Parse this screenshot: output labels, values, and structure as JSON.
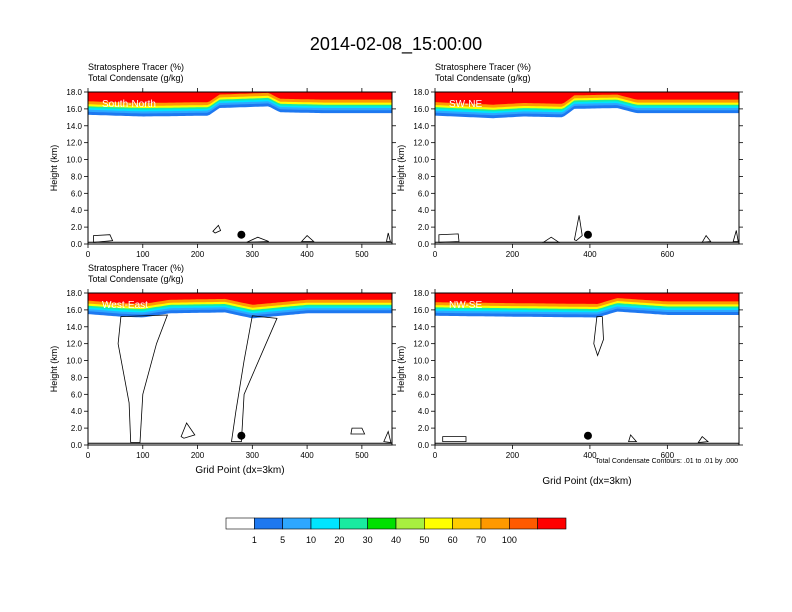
{
  "title": "2014-02-08_15:00:00",
  "footnote": "Total Condensate Contours: .01 to .01 by .000",
  "colors": {
    "levels": [
      "#ffffff",
      "#1e78f0",
      "#2ea7ff",
      "#00e5ff",
      "#19eba0",
      "#00e000",
      "#a8f040",
      "#ffff00",
      "#ffcc00",
      "#ff9900",
      "#ff5a00",
      "#ff0000"
    ],
    "contour": "#000000",
    "marker": "#000000"
  },
  "chart_data": [
    {
      "type": "heatmap",
      "panel": "top-left",
      "label": "South-North",
      "lefttitle1": "Stratosphere Tracer   (%)",
      "lefttitle2": "Total Condensate   (g/kg)",
      "ylabel": "Height (km)",
      "xlabel": "",
      "xlim": [
        0,
        555
      ],
      "ylim": [
        0,
        18
      ],
      "xticks": [
        0,
        100,
        200,
        300,
        400,
        500
      ],
      "yticks": [
        "0.0",
        "2.0",
        "4.0",
        "6.0",
        "8.0",
        "10.0",
        "12.0",
        "14.0",
        "16.0",
        "18.0"
      ],
      "marker": {
        "x": 280,
        "y": 1.1
      },
      "tracer_base_km": [
        [
          0,
          15.3
        ],
        [
          100,
          15.1
        ],
        [
          220,
          15.2
        ],
        [
          240,
          16.1
        ],
        [
          330,
          16.3
        ],
        [
          350,
          15.6
        ],
        [
          430,
          15.5
        ],
        [
          555,
          15.5
        ]
      ],
      "condensate_contours": [
        [
          [
            10,
            0.2
          ],
          [
            10,
            1.0
          ],
          [
            40,
            1.1
          ],
          [
            45,
            0.4
          ],
          [
            12,
            0.2
          ]
        ],
        [
          [
            228,
            1.5
          ],
          [
            238,
            2.2
          ],
          [
            242,
            1.6
          ],
          [
            232,
            1.3
          ]
        ],
        [
          [
            290,
            0.2
          ],
          [
            310,
            0.8
          ],
          [
            330,
            0.3
          ]
        ],
        [
          [
            390,
            0.3
          ],
          [
            400,
            1.0
          ],
          [
            412,
            0.3
          ]
        ],
        [
          [
            545,
            0.3
          ],
          [
            548,
            1.3
          ],
          [
            552,
            0.3
          ]
        ]
      ]
    },
    {
      "type": "heatmap",
      "panel": "top-right",
      "label": "SW-NE",
      "lefttitle1": "Stratosphere Tracer   (%)",
      "lefttitle2": "Total Condensate   (g/kg)",
      "ylabel": "Height (km)",
      "xlabel": "",
      "xlim": [
        0,
        785
      ],
      "ylim": [
        0,
        18
      ],
      "xticks": [
        0,
        200,
        400,
        600
      ],
      "yticks": [
        "0.0",
        "2.0",
        "4.0",
        "6.0",
        "8.0",
        "10.0",
        "12.0",
        "14.0",
        "16.0",
        "18.0"
      ],
      "marker": {
        "x": 395,
        "y": 1.1
      },
      "tracer_base_km": [
        [
          0,
          15.2
        ],
        [
          150,
          14.9
        ],
        [
          230,
          15.1
        ],
        [
          330,
          15.0
        ],
        [
          360,
          16.0
        ],
        [
          470,
          16.1
        ],
        [
          520,
          15.5
        ],
        [
          785,
          15.5
        ]
      ],
      "condensate_contours": [
        [
          [
            10,
            0.2
          ],
          [
            10,
            1.1
          ],
          [
            60,
            1.2
          ],
          [
            62,
            0.3
          ],
          [
            12,
            0.2
          ]
        ],
        [
          [
            360,
            0.5
          ],
          [
            372,
            3.4
          ],
          [
            380,
            1.0
          ],
          [
            365,
            0.4
          ]
        ],
        [
          [
            280,
            0.2
          ],
          [
            300,
            0.8
          ],
          [
            320,
            0.2
          ]
        ],
        [
          [
            690,
            0.2
          ],
          [
            700,
            1.0
          ],
          [
            712,
            0.3
          ]
        ],
        [
          [
            770,
            0.3
          ],
          [
            778,
            1.6
          ],
          [
            783,
            0.3
          ]
        ]
      ]
    },
    {
      "type": "heatmap",
      "panel": "bottom-left",
      "label": "West-East",
      "lefttitle1": "Stratosphere Tracer   (%)",
      "lefttitle2": "Total Condensate   (g/kg)",
      "ylabel": "Height (km)",
      "xlabel": "Grid Point (dx=3km)",
      "xlim": [
        0,
        555
      ],
      "ylim": [
        0,
        18
      ],
      "xticks": [
        0,
        100,
        200,
        300,
        400,
        500
      ],
      "yticks": [
        "0.0",
        "2.0",
        "4.0",
        "6.0",
        "8.0",
        "10.0",
        "12.0",
        "14.0",
        "16.0",
        "18.0"
      ],
      "marker": {
        "x": 280,
        "y": 1.1
      },
      "tracer_base_km": [
        [
          0,
          15.5
        ],
        [
          60,
          15.2
        ],
        [
          100,
          15.1
        ],
        [
          150,
          15.6
        ],
        [
          250,
          15.7
        ],
        [
          300,
          15.0
        ],
        [
          400,
          15.6
        ],
        [
          555,
          15.6
        ]
      ],
      "condensate_contours": [
        [
          [
            60,
            15.2
          ],
          [
            55,
            12.0
          ],
          [
            75,
            5.0
          ],
          [
            78,
            0.3
          ],
          [
            95,
            0.3
          ],
          [
            100,
            6.0
          ],
          [
            125,
            12.0
          ],
          [
            145,
            15.4
          ]
        ],
        [
          [
            300,
            15.3
          ],
          [
            285,
            10.0
          ],
          [
            270,
            4.0
          ],
          [
            262,
            0.4
          ],
          [
            280,
            0.4
          ],
          [
            285,
            6.0
          ],
          [
            325,
            12.0
          ],
          [
            345,
            15.0
          ]
        ],
        [
          [
            170,
            1.0
          ],
          [
            180,
            2.6
          ],
          [
            195,
            1.2
          ],
          [
            175,
            0.8
          ]
        ],
        [
          [
            480,
            1.3
          ],
          [
            482,
            2.0
          ],
          [
            500,
            2.0
          ],
          [
            505,
            1.3
          ]
        ],
        [
          [
            540,
            0.4
          ],
          [
            548,
            1.6
          ],
          [
            553,
            0.3
          ]
        ]
      ]
    },
    {
      "type": "heatmap",
      "panel": "bottom-right",
      "label": "NW-SE",
      "lefttitle1": "",
      "lefttitle2": "",
      "ylabel": "Height (km)",
      "xlabel": "Grid Point (dx=3km)",
      "xlim": [
        0,
        785
      ],
      "ylim": [
        0,
        18
      ],
      "xticks": [
        0,
        200,
        400,
        600
      ],
      "yticks": [
        "0.0",
        "2.0",
        "4.0",
        "6.0",
        "8.0",
        "10.0",
        "12.0",
        "14.0",
        "16.0",
        "18.0"
      ],
      "marker": {
        "x": 395,
        "y": 1.1
      },
      "tracer_base_km": [
        [
          0,
          15.3
        ],
        [
          200,
          15.2
        ],
        [
          420,
          15.1
        ],
        [
          470,
          15.8
        ],
        [
          600,
          15.4
        ],
        [
          785,
          15.4
        ]
      ],
      "condensate_contours": [
        [
          [
            418,
            15.2
          ],
          [
            410,
            12.0
          ],
          [
            420,
            10.6
          ],
          [
            435,
            12.5
          ],
          [
            432,
            15.2
          ]
        ],
        [
          [
            20,
            0.4
          ],
          [
            20,
            1.0
          ],
          [
            80,
            1.0
          ],
          [
            80,
            0.4
          ]
        ],
        [
          [
            500,
            0.4
          ],
          [
            505,
            1.2
          ],
          [
            520,
            0.4
          ]
        ],
        [
          [
            680,
            0.3
          ],
          [
            690,
            1.0
          ],
          [
            705,
            0.4
          ]
        ]
      ]
    }
  ],
  "colorbar": {
    "labels": [
      "1",
      "5",
      "10",
      "20",
      "30",
      "40",
      "50",
      "60",
      "70",
      "100"
    ],
    "orientation": "horizontal",
    "placement": "bottom-center"
  }
}
